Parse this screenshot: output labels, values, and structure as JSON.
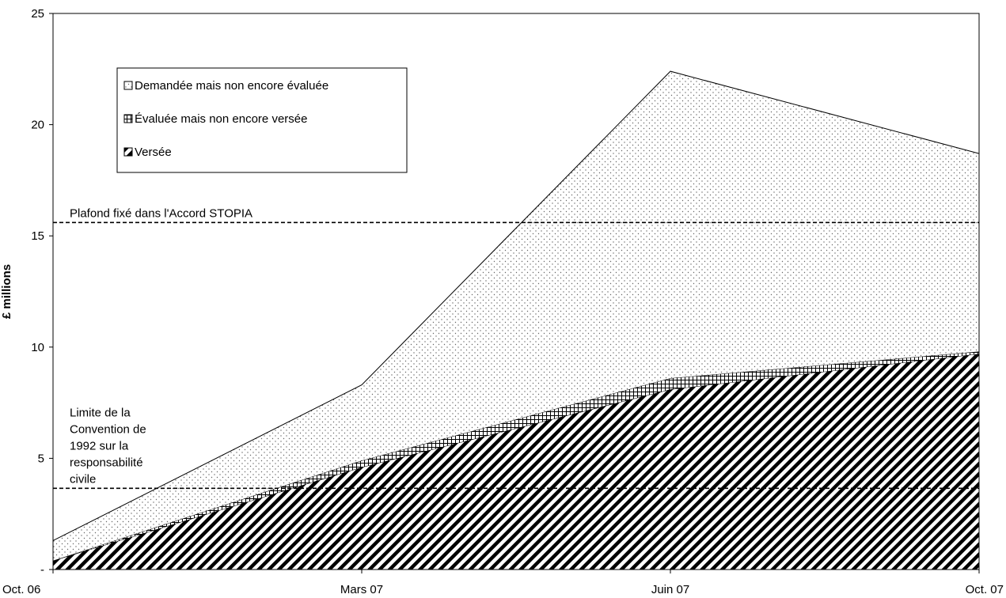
{
  "chart_data": {
    "type": "area",
    "stacked": true,
    "title": "",
    "xlabel": "",
    "ylabel": "£ millions",
    "categories": [
      "Oct. 06",
      "Mars 07",
      "Juin 07",
      "Oct. 07"
    ],
    "ylim": [
      0,
      25
    ],
    "yticks": [
      {
        "value": 0,
        "label": "-"
      },
      {
        "value": 5,
        "label": "5"
      },
      {
        "value": 10,
        "label": "10"
      },
      {
        "value": 15,
        "label": "15"
      },
      {
        "value": 20,
        "label": "20"
      },
      {
        "value": 25,
        "label": "25"
      }
    ],
    "series": [
      {
        "name": "Versée",
        "pattern": "diagonal-hatch",
        "values": [
          0.4,
          4.6,
          8.1,
          9.7
        ]
      },
      {
        "name": "Évaluée mais non encore versée",
        "pattern": "grid",
        "values": [
          0.0,
          0.3,
          0.5,
          0.1
        ]
      },
      {
        "name": "Demandée mais non encore évaluée",
        "pattern": "dots",
        "values": [
          0.9,
          3.4,
          13.8,
          8.9
        ]
      }
    ],
    "reference_lines": [
      {
        "value": 15.6,
        "label": "Plafond fixé dans l'Accord STOPIA",
        "label_lines": [
          "Plafond fixé dans l'Accord STOPIA"
        ]
      },
      {
        "value": 3.65,
        "label": "Limite de la Convention de 1992 sur la responsabilité civile",
        "label_lines": [
          "Limite de la",
          "Convention de",
          "1992 sur la",
          "responsabilité",
          "civile"
        ]
      }
    ],
    "legend": {
      "placement": "top-left",
      "order": [
        "Demandée mais non encore évaluée",
        "Évaluée mais non encore versée",
        "Versée"
      ]
    },
    "grid": false
  }
}
